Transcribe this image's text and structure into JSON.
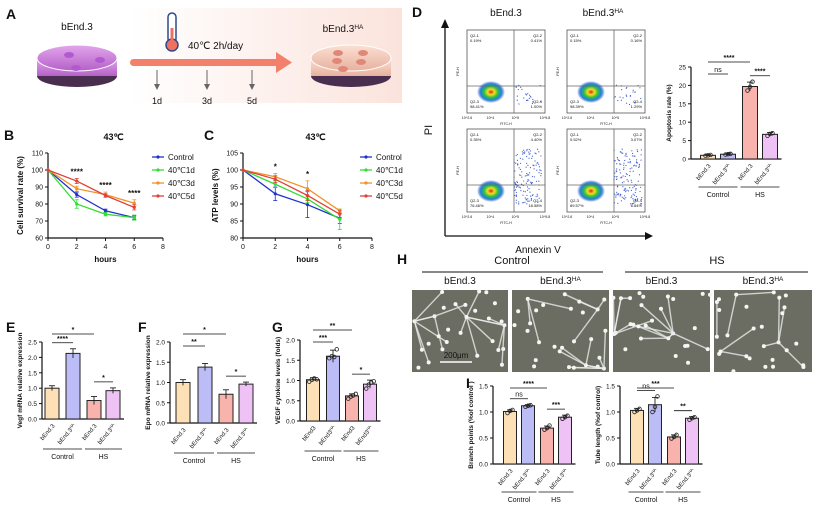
{
  "panel_letters": [
    "A",
    "B",
    "C",
    "D",
    "E",
    "F",
    "G",
    "H",
    "I"
  ],
  "schematic": {
    "start_label": "bEnd.3",
    "end_label": "bEnd.3",
    "end_label_sup": "HA",
    "treatment": "40℃ 2h/day",
    "timepoints": [
      "1d",
      "3d",
      "5d"
    ],
    "icons": [
      "petri-dish-icon",
      "thermometer-icon",
      "arrow-right-icon"
    ]
  },
  "colors": {
    "Control": "#2233cc",
    "40℃1d": "#33dd33",
    "40℃3d": "#f0922a",
    "40℃5d": "#e0403a",
    "bar_fills": [
      "#fde0b5",
      "#bcbcf6",
      "#f8b3ad",
      "#efc2f6"
    ]
  },
  "flow": {
    "col_titles": [
      {
        "base": "bEnd.3",
        "sup": ""
      },
      {
        "base": "bEnd.3",
        "sup": "HA"
      }
    ],
    "y_axis": "PI",
    "x_axis": "Annexin V",
    "sub_xlabel": "FITC-H",
    "sub_ylabel": "PE-H",
    "x_ticks": [
      "10^2.6",
      "10^4",
      "10^5",
      "10^5.8"
    ],
    "plots": [
      {
        "q1": "0.19%",
        "q2": "0.41%",
        "q3": "98.41%",
        "q4": "1.00%"
      },
      {
        "q1": "0.15%",
        "q2": "0.16%",
        "q3": "98.39%",
        "q4": "1.29%"
      },
      {
        "q1": "0.35%",
        "q2": "4.40%",
        "q3": "76.46%",
        "q4": "18.58%"
      },
      {
        "q1": "0.52%",
        "q2": "3.07%",
        "q3": "89.57%",
        "q4": "6.84%"
      }
    ],
    "quad_names": [
      "Q2-1",
      "Q2-2",
      "Q2-3",
      "Q2-4"
    ]
  },
  "tube": {
    "groups": [
      "Control",
      "HS"
    ],
    "columns": [
      {
        "base": "bEnd.3",
        "sup": ""
      },
      {
        "base": "bEnd.3",
        "sup": "HA"
      },
      {
        "base": "bEnd.3",
        "sup": ""
      },
      {
        "base": "bEnd.3",
        "sup": "HA"
      }
    ],
    "scale_bar": "200μm"
  },
  "chart_data": [
    {
      "id": "B",
      "type": "line",
      "title": "43℃",
      "xlabel": "hours",
      "ylabel": "Cell survival rate (%)",
      "xlim": [
        0,
        8
      ],
      "ylim": [
        60,
        110
      ],
      "xticks": [
        0,
        2,
        4,
        6,
        8
      ],
      "yticks": [
        60,
        70,
        80,
        90,
        100,
        110
      ],
      "x": [
        0,
        2,
        4,
        6
      ],
      "legend": "right",
      "series": [
        {
          "name": "Control",
          "values": [
            100,
            85.5,
            76,
            72
          ],
          "err": [
            0,
            1.5,
            1,
            1
          ]
        },
        {
          "name": "40℃1d",
          "values": [
            100,
            80,
            74,
            72
          ],
          "err": [
            0,
            2.5,
            1,
            1.5
          ]
        },
        {
          "name": "40℃3d",
          "values": [
            100,
            89,
            85.5,
            80.5
          ],
          "err": [
            0,
            1.5,
            1.5,
            2
          ]
        },
        {
          "name": "40℃5d",
          "values": [
            100,
            93.5,
            85,
            78
          ],
          "err": [
            0,
            1.5,
            1,
            1.5
          ]
        }
      ],
      "annotations": [
        {
          "x": 2,
          "text": "****"
        },
        {
          "x": 4,
          "text": "****"
        },
        {
          "x": 6,
          "text": "****"
        }
      ]
    },
    {
      "id": "C",
      "type": "line",
      "title": "43℃",
      "xlabel": "hours",
      "ylabel": "ATP levels (%)",
      "xlim": [
        0,
        8
      ],
      "ylim": [
        80,
        105
      ],
      "xticks": [
        0,
        2,
        4,
        6,
        8
      ],
      "yticks": [
        80,
        85,
        90,
        95,
        100,
        105
      ],
      "x": [
        0,
        2,
        4,
        6
      ],
      "legend": "right",
      "series": [
        {
          "name": "Control",
          "values": [
            100,
            93,
            89.8,
            85.8
          ],
          "err": [
            0,
            2,
            3.8,
            1.5
          ]
        },
        {
          "name": "40℃1d",
          "values": [
            100,
            95.8,
            91.5,
            85.5
          ],
          "err": [
            0,
            1,
            1,
            3
          ]
        },
        {
          "name": "40℃3d",
          "values": [
            100,
            98,
            94.5,
            88
          ],
          "err": [
            0,
            1,
            2.3,
            0.5
          ]
        },
        {
          "name": "40℃5d",
          "values": [
            100,
            97.3,
            92.5,
            87
          ],
          "err": [
            0,
            1,
            1.5,
            1
          ]
        }
      ],
      "annotations": [
        {
          "x": 2,
          "text": "*"
        },
        {
          "x": 4,
          "text": "*"
        }
      ]
    },
    {
      "id": "D",
      "type": "bar",
      "ylabel": "Apoptosis rate (%)",
      "ylim": [
        0,
        25
      ],
      "yticks": [
        0,
        5,
        10,
        15,
        20,
        25
      ],
      "categories": [
        {
          "base": "bEnd.3",
          "sup": ""
        },
        {
          "base": "bEnd.3",
          "sup": "HA"
        },
        {
          "base": "bEnd.3",
          "sup": ""
        },
        {
          "base": "bEnd.3",
          "sup": "HA"
        }
      ],
      "groups": [
        "Control",
        "HS"
      ],
      "values": [
        1.0,
        1.3,
        19.7,
        6.7
      ],
      "err": [
        0.2,
        0.3,
        1.2,
        0.5
      ],
      "points": [
        [
          0.9,
          1.0,
          1.1
        ],
        [
          1.2,
          1.3,
          1.4
        ],
        [
          18.6,
          19.6,
          21.0
        ],
        [
          6.3,
          6.8,
          7.0
        ]
      ],
      "significance": [
        {
          "a": 0,
          "b": 1,
          "text": "ns"
        },
        {
          "a": 0,
          "b": 2,
          "text": "****"
        },
        {
          "a": 2,
          "b": 3,
          "text": "****"
        }
      ]
    },
    {
      "id": "E",
      "type": "bar",
      "ylabel": "Vegf mRNA relative expression",
      "ylim": [
        0,
        2.5
      ],
      "yticks": [
        0,
        0.5,
        1.0,
        1.5,
        2.0,
        2.5
      ],
      "categories": [
        {
          "base": "bEnd.3",
          "sup": ""
        },
        {
          "base": "bEnd.3",
          "sup": "HA"
        },
        {
          "base": "bEnd.3",
          "sup": ""
        },
        {
          "base": "bEnd.3",
          "sup": "HA"
        }
      ],
      "groups": [
        "Control",
        "HS"
      ],
      "values": [
        1.0,
        2.13,
        0.6,
        0.92
      ],
      "err": [
        0.08,
        0.15,
        0.13,
        0.09
      ],
      "significance": [
        {
          "a": 0,
          "b": 1,
          "text": "****"
        },
        {
          "a": 0,
          "b": 2,
          "text": "*"
        },
        {
          "a": 2,
          "b": 3,
          "text": "*"
        }
      ]
    },
    {
      "id": "F",
      "type": "bar",
      "ylabel": "Epo mRNA relative expression",
      "ylim": [
        0,
        2.0
      ],
      "yticks": [
        0,
        0.5,
        1.0,
        1.5,
        2.0
      ],
      "categories": [
        {
          "base": "bEnd.3",
          "sup": ""
        },
        {
          "base": "bEnd.3",
          "sup": "HA"
        },
        {
          "base": "bEnd.3",
          "sup": ""
        },
        {
          "base": "bEnd.3",
          "sup": "HA"
        }
      ],
      "groups": [
        "Control",
        "HS"
      ],
      "values": [
        1.0,
        1.38,
        0.71,
        0.96
      ],
      "err": [
        0.07,
        0.09,
        0.11,
        0.05
      ],
      "significance": [
        {
          "a": 0,
          "b": 1,
          "text": "**"
        },
        {
          "a": 0,
          "b": 2,
          "text": "*"
        },
        {
          "a": 2,
          "b": 3,
          "text": "*"
        }
      ]
    },
    {
      "id": "G",
      "type": "bar",
      "ylabel": "VEGF cytokine levels (folds)",
      "ylim": [
        0,
        2.0
      ],
      "yticks": [
        0,
        0.5,
        1.0,
        1.5,
        2.0
      ],
      "categories": [
        {
          "base": "bEnd3",
          "sup": ""
        },
        {
          "base": "bEnd3",
          "sup": "HA"
        },
        {
          "base": "bEnd3",
          "sup": ""
        },
        {
          "base": "bEnd3",
          "sup": "HA"
        }
      ],
      "groups": [
        "Control",
        "HS"
      ],
      "values": [
        1.02,
        1.6,
        0.62,
        0.91
      ],
      "err": [
        0.05,
        0.15,
        0.05,
        0.1
      ],
      "points": [
        [
          0.97,
          1.02,
          1.05,
          1.03
        ],
        [
          1.55,
          1.6,
          1.58,
          1.77
        ],
        [
          0.55,
          0.6,
          0.63,
          0.67
        ],
        [
          0.8,
          0.9,
          0.95,
          0.98
        ]
      ],
      "significance": [
        {
          "a": 0,
          "b": 1,
          "text": "***"
        },
        {
          "a": 0,
          "b": 2,
          "text": "**"
        },
        {
          "a": 2,
          "b": 3,
          "text": "*"
        }
      ]
    },
    {
      "id": "I1",
      "type": "bar",
      "ylabel": "Branch points (%of control )",
      "ylim": [
        0,
        1.5
      ],
      "yticks": [
        0,
        0.5,
        1.0,
        1.5
      ],
      "categories": [
        {
          "base": "bEnd.3",
          "sup": ""
        },
        {
          "base": "bEnd.3",
          "sup": "HA"
        },
        {
          "base": "bEnd.3",
          "sup": ""
        },
        {
          "base": "bEnd.3",
          "sup": "HA"
        }
      ],
      "groups": [
        "Control",
        "HS"
      ],
      "values": [
        1.01,
        1.12,
        0.69,
        0.9
      ],
      "err": [
        0.03,
        0.02,
        0.04,
        0.04
      ],
      "points": [
        [
          0.98,
          1.02,
          1.04
        ],
        [
          1.1,
          1.12,
          1.13
        ],
        [
          0.66,
          0.69,
          0.74
        ],
        [
          0.87,
          0.9,
          0.93
        ]
      ],
      "significance": [
        {
          "a": 0,
          "b": 1,
          "text": "ns"
        },
        {
          "a": 0,
          "b": 2,
          "text": "****"
        },
        {
          "a": 2,
          "b": 3,
          "text": "***"
        }
      ]
    },
    {
      "id": "I2",
      "type": "bar",
      "ylabel": "Tube length (%of control)",
      "ylim": [
        0,
        1.5
      ],
      "yticks": [
        0,
        0.5,
        1.0,
        1.5
      ],
      "categories": [
        {
          "base": "bEnd.3",
          "sup": ""
        },
        {
          "base": "bEnd.3",
          "sup": "HA"
        },
        {
          "base": "bEnd.3",
          "sup": ""
        },
        {
          "base": "bEnd.3",
          "sup": "HA"
        }
      ],
      "groups": [
        "Control",
        "HS"
      ],
      "values": [
        1.03,
        1.14,
        0.52,
        0.88
      ],
      "err": [
        0.04,
        0.14,
        0.04,
        0.03
      ],
      "points": [
        [
          1.0,
          1.03,
          1.06
        ],
        [
          1.0,
          1.1,
          1.3
        ],
        [
          0.49,
          0.52,
          0.56
        ],
        [
          0.85,
          0.88,
          0.9
        ]
      ],
      "significance": [
        {
          "a": 0,
          "b": 1,
          "text": "ns"
        },
        {
          "a": 0,
          "b": 2,
          "text": "***"
        },
        {
          "a": 2,
          "b": 3,
          "text": "**"
        }
      ]
    }
  ]
}
